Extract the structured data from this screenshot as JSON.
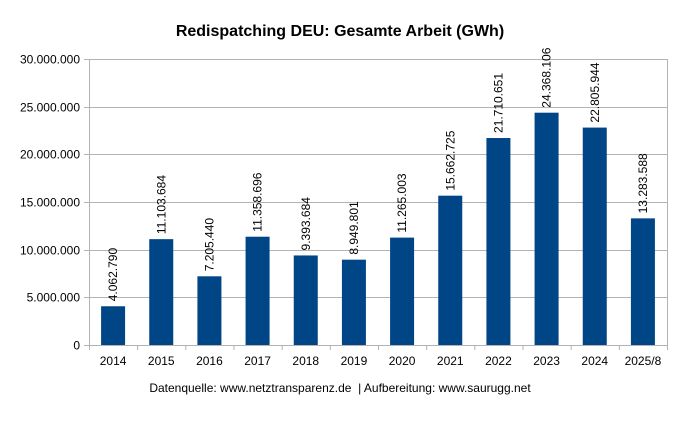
{
  "chart_data": {
    "type": "bar",
    "title": "Redispatching DEU: Gesamte Arbeit (GWh)",
    "categories": [
      "2014",
      "2015",
      "2016",
      "2017",
      "2018",
      "2019",
      "2020",
      "2021",
      "2022",
      "2023",
      "2024",
      "2025/8"
    ],
    "values": [
      4062790,
      11103684,
      7205440,
      11358696,
      9393684,
      8949801,
      11265003,
      15662725,
      21710651,
      24368106,
      22805944,
      13283588
    ],
    "data_labels": [
      "4.062.790",
      "11.103.684",
      "7.205.440",
      "11.358.696",
      "9.393.684",
      "8.949.801",
      "11.265.003",
      "15.662.725",
      "21.710.651",
      "24.368.106",
      "22.805.944",
      "13.283.588"
    ],
    "ylim": [
      0,
      30000000
    ],
    "yticks": [
      0,
      5000000,
      10000000,
      15000000,
      20000000,
      25000000,
      30000000
    ],
    "ytick_labels": [
      "0",
      "5.000.000",
      "10.000.000",
      "15.000.000",
      "20.000.000",
      "25.000.000",
      "30.000.000"
    ],
    "xlabel": "",
    "ylabel": "",
    "grid": true,
    "legend": "none",
    "bar_color": "#004586",
    "footer": "Datenquelle: www.netztransparenz.de  | Aufbereitung: www.saurugg.net"
  }
}
